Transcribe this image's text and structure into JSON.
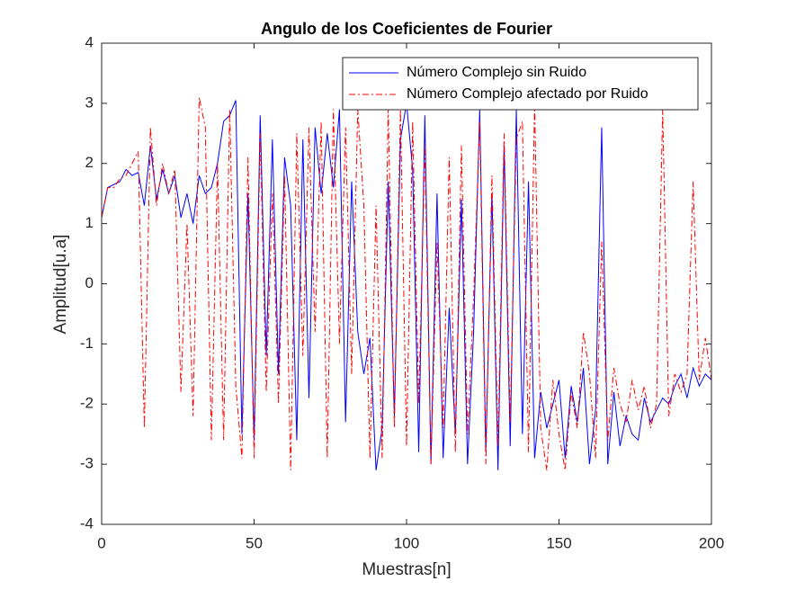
{
  "chart_data": {
    "type": "line",
    "title": "Angulo de los Coeficientes de Fourier",
    "xlabel": "Muestras[n]",
    "ylabel": "Amplitud[u.a]",
    "xlim": [
      0,
      200
    ],
    "ylim": [
      -4,
      4
    ],
    "xticks": [
      0,
      50,
      100,
      150,
      200
    ],
    "yticks": [
      -4,
      -3,
      -2,
      -1,
      0,
      1,
      2,
      3,
      4
    ],
    "grid": false,
    "legend": "northeast",
    "x": [
      0,
      2,
      4,
      6,
      8,
      10,
      12,
      14,
      16,
      18,
      20,
      22,
      24,
      26,
      28,
      30,
      32,
      34,
      36,
      38,
      40,
      42,
      44,
      46,
      48,
      50,
      52,
      54,
      56,
      58,
      60,
      62,
      64,
      66,
      68,
      70,
      72,
      74,
      76,
      78,
      80,
      82,
      84,
      86,
      88,
      90,
      92,
      94,
      96,
      98,
      100,
      102,
      104,
      106,
      108,
      110,
      112,
      114,
      116,
      118,
      120,
      122,
      124,
      126,
      128,
      130,
      132,
      134,
      136,
      138,
      140,
      142,
      144,
      146,
      148,
      150,
      152,
      154,
      156,
      158,
      160,
      162,
      164,
      166,
      168,
      170,
      172,
      174,
      176,
      178,
      180,
      182,
      184,
      186,
      188,
      190,
      192,
      194,
      196,
      198,
      200
    ],
    "series": [
      {
        "name": "Número Complejo sin Ruido",
        "color": "#0000ff",
        "linestyle": "solid",
        "values": [
          1.1,
          1.6,
          1.65,
          1.7,
          1.9,
          1.8,
          1.85,
          1.3,
          2.3,
          1.4,
          1.9,
          1.5,
          1.8,
          1.1,
          1.5,
          1.0,
          1.8,
          1.5,
          1.6,
          2.0,
          2.7,
          2.8,
          3.05,
          -2.5,
          1.5,
          -2.6,
          2.8,
          -1.2,
          2.4,
          -1.5,
          2.1,
          1.3,
          -2.6,
          2.4,
          -1.9,
          2.6,
          1.5,
          2.5,
          1.6,
          2.9,
          -2.3,
          1.7,
          -0.8,
          -1.5,
          -0.9,
          -3.1,
          -2.4,
          1.7,
          -2.2,
          2.4,
          3.0,
          1.9,
          -2.8,
          2.8,
          -3.0,
          1.5,
          -2.9,
          -0.4,
          -2.5,
          1.4,
          -3.0,
          -0.8,
          2.9,
          -2.8,
          1.5,
          -3.1,
          2.3,
          -2.7,
          2.9,
          -2.5,
          1.7,
          -2.9,
          -1.8,
          -2.4,
          -2.0,
          -1.6,
          -2.9,
          -1.7,
          -2.3,
          -1.4,
          -3.0,
          -2.1,
          2.6,
          -3.0,
          -1.8,
          -2.7,
          -2.2,
          -2.5,
          -2.6,
          -1.9,
          -2.3,
          -2.1,
          -1.9,
          -2.0,
          -1.7,
          -1.5,
          -1.9,
          -1.4,
          -1.7,
          -1.5,
          -1.6
        ]
      },
      {
        "name": "Número Complejo afectado por Ruido",
        "color": "#ff0000",
        "linestyle": "dash-dot",
        "values": [
          1.1,
          1.6,
          1.6,
          1.75,
          1.8,
          2.0,
          2.2,
          -2.4,
          2.6,
          1.3,
          2.0,
          1.5,
          1.9,
          -1.8,
          1.0,
          -2.2,
          3.1,
          2.6,
          -2.6,
          2.0,
          -2.6,
          2.9,
          -1.7,
          -2.9,
          2.1,
          -2.9,
          2.5,
          -1.8,
          1.5,
          -2.0,
          1.8,
          -3.1,
          2.5,
          -1.2,
          2.6,
          -0.8,
          2.7,
          -2.9,
          2.9,
          -1.0,
          2.6,
          -1.5,
          2.9,
          1.3,
          -2.9,
          1.3,
          -2.9,
          2.9,
          -2.4,
          2.9,
          -2.7,
          2.7,
          -2.0,
          2.3,
          -3.0,
          0.7,
          -2.4,
          2.1,
          -2.8,
          2.3,
          -2.5,
          -0.2,
          2.7,
          -3.0,
          1.8,
          -2.7,
          2.5,
          -2.3,
          2.4,
          2.7,
          -2.8,
          3.0,
          -2.4,
          -3.1,
          -1.6,
          -2.5,
          -3.1,
          -1.8,
          -2.4,
          -0.8,
          -1.5,
          -2.9,
          0.7,
          -2.6,
          -1.4,
          -2.0,
          -2.3,
          -1.6,
          -2.1,
          -1.7,
          -2.4,
          -2.0,
          2.9,
          -2.2,
          -1.5,
          -1.8,
          -1.5,
          1.7,
          -1.6,
          -0.9,
          -1.6
        ]
      }
    ]
  }
}
